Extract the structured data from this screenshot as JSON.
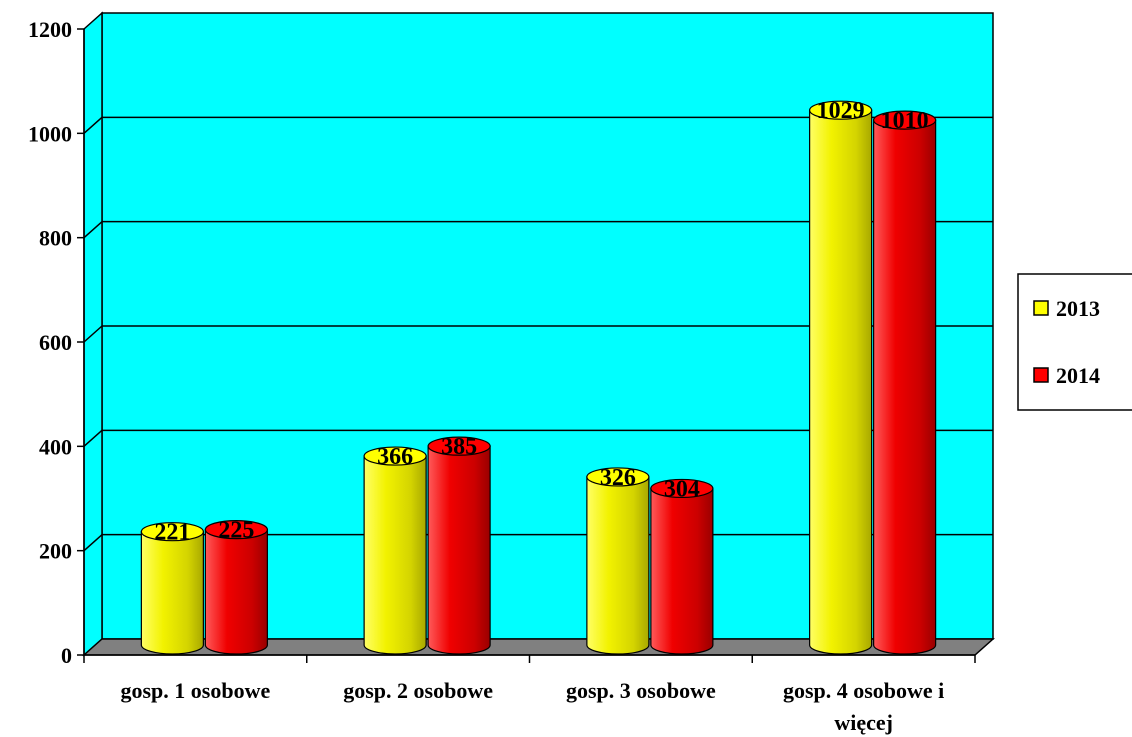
{
  "chart_data": {
    "type": "bar",
    "categories": [
      "gosp. 1 osobowe",
      "gosp. 2 osobowe",
      "gosp. 3 osobowe",
      "gosp. 4 osobowe i więcej"
    ],
    "category_lines": [
      [
        "gosp. 1 osobowe"
      ],
      [
        "gosp. 2 osobowe"
      ],
      [
        "gosp. 3 osobowe"
      ],
      [
        "gosp. 4 osobowe i",
        "więcej"
      ]
    ],
    "series": [
      {
        "name": "2013",
        "values": [
          221,
          366,
          326,
          1029
        ],
        "color": "#ffff00"
      },
      {
        "name": "2014",
        "values": [
          225,
          385,
          304,
          1010
        ],
        "color": "#ff0000"
      }
    ],
    "value_labels": [
      [
        "221",
        "366",
        "326",
        "1029"
      ],
      [
        "225",
        "385",
        "304",
        "1010"
      ]
    ],
    "yticks": [
      0,
      200,
      400,
      600,
      800,
      1000,
      1200
    ],
    "ytick_labels": [
      "0",
      "200",
      "400",
      "600",
      "800",
      "1000",
      "1200"
    ],
    "ylim": [
      0,
      1200
    ],
    "grid": true,
    "legend_position": "right",
    "title": "",
    "xlabel": "",
    "ylabel": "",
    "colors": {
      "plot_background": "#00ffff",
      "floor": "#808080",
      "grid": "#000000"
    }
  }
}
